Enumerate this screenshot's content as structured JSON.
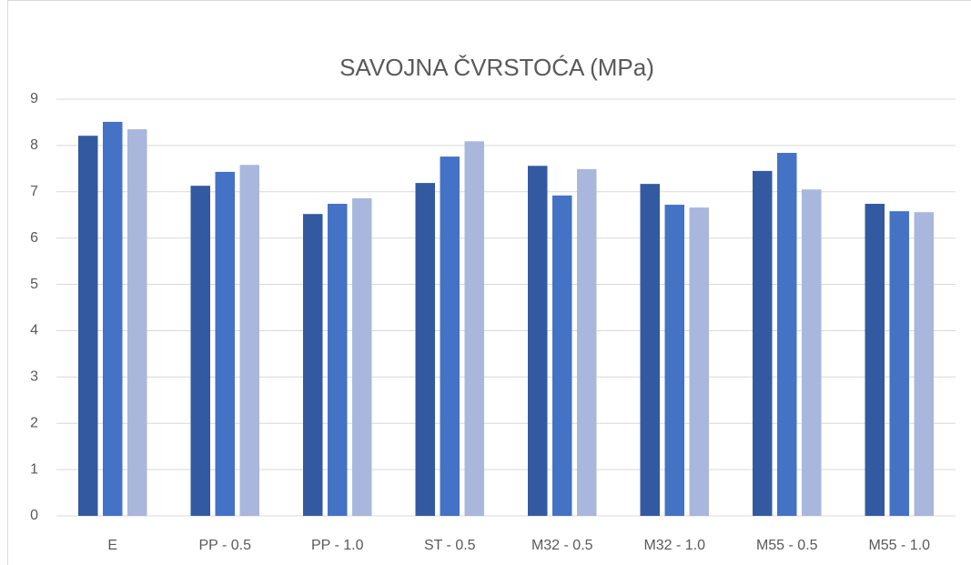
{
  "chart_data": {
    "type": "bar",
    "title": "SAVOJNA ČVRSTOĆA (MPa)",
    "categories": [
      "E",
      "PP - 0.5",
      "PP - 1.0",
      "ST - 0.5",
      "M32 - 0.5",
      "M32 - 1.0",
      "M55 - 0.5",
      "M55 - 1.0"
    ],
    "series": [
      {
        "color": "#335aa1",
        "values": [
          8.21,
          7.13,
          6.52,
          7.19,
          7.56,
          7.17,
          7.45,
          6.74
        ]
      },
      {
        "color": "#4472c4",
        "values": [
          8.51,
          7.43,
          6.74,
          7.76,
          6.92,
          6.72,
          7.84,
          6.58
        ]
      },
      {
        "color": "#a9b7dc",
        "values": [
          8.35,
          7.58,
          6.86,
          8.09,
          7.49,
          6.66,
          7.05,
          6.56
        ]
      }
    ],
    "ylim": [
      0,
      9
    ],
    "yticks": [
      0,
      1,
      2,
      3,
      4,
      5,
      6,
      7,
      8,
      9
    ],
    "grid": true
  }
}
